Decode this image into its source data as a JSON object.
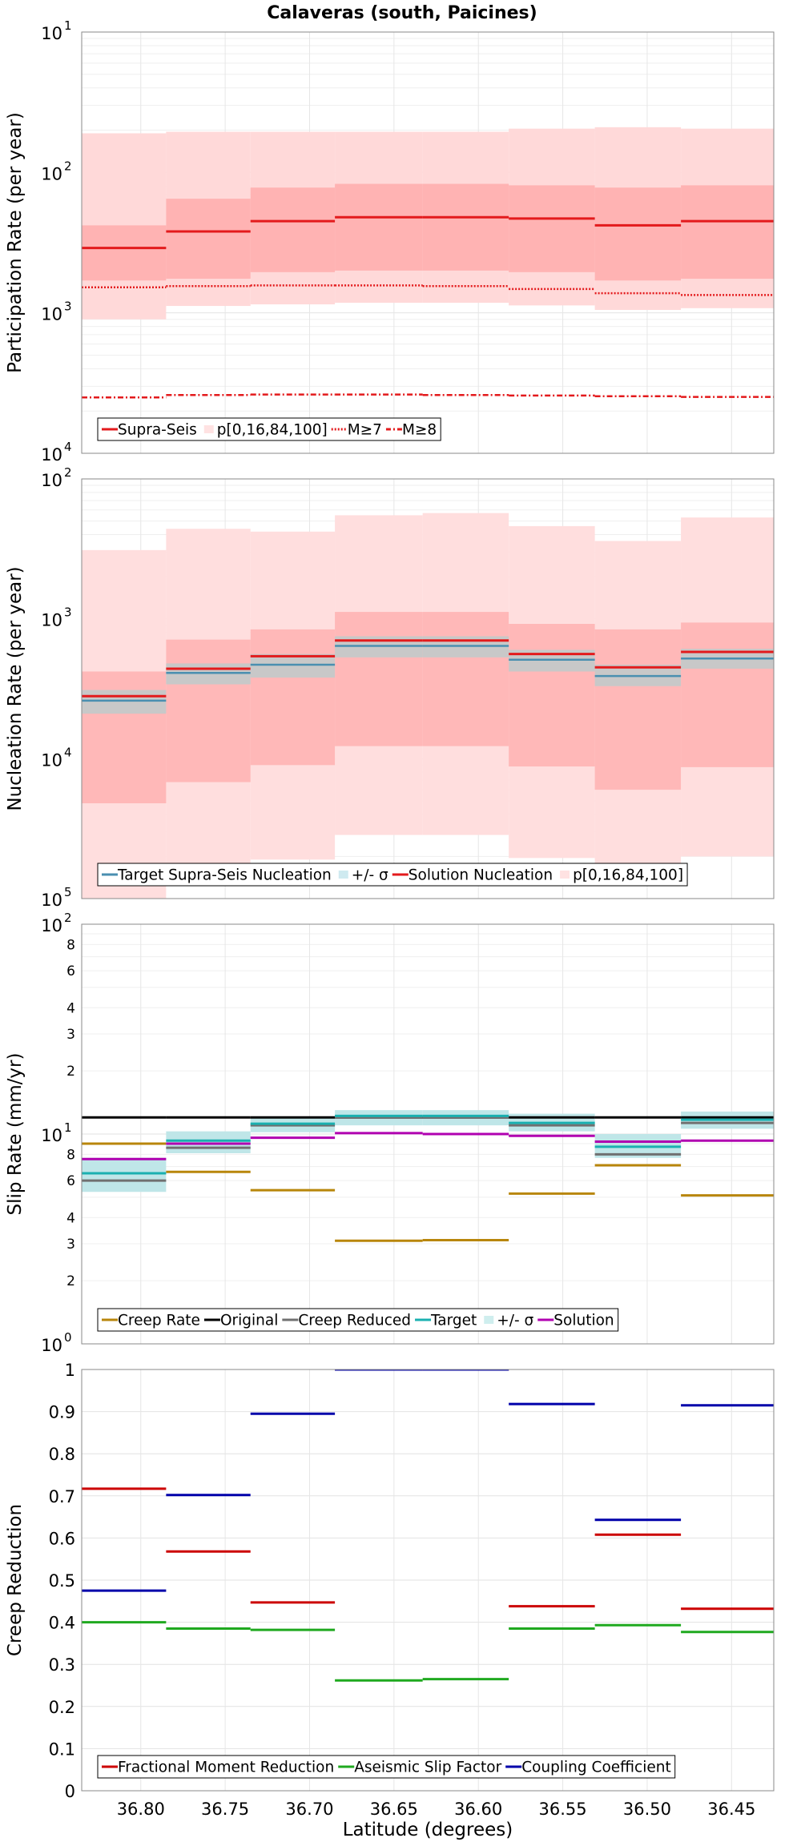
{
  "title": "Calaveras (south, Paicines)",
  "x_axis": {
    "label": "Latitude (degrees)",
    "range": [
      36.835,
      36.425
    ],
    "ticks": [
      36.8,
      36.75,
      36.7,
      36.65,
      36.6,
      36.55,
      36.5,
      36.45
    ],
    "tick_labels": [
      "36.80",
      "36.75",
      "36.70",
      "36.65",
      "36.60",
      "36.55",
      "36.50",
      "36.45"
    ]
  },
  "segments": [
    [
      36.835,
      36.785
    ],
    [
      36.785,
      36.735
    ],
    [
      36.735,
      36.685
    ],
    [
      36.685,
      36.633
    ],
    [
      36.633,
      36.582
    ],
    [
      36.582,
      36.531
    ],
    [
      36.531,
      36.48
    ],
    [
      36.48,
      36.425
    ]
  ],
  "colors": {
    "solution_red": "#e31a1c",
    "band_outer": "#ffd9d9",
    "band_inner": "#ffb3b3",
    "band_nuc_outer": "#ffdede",
    "band_nuc_inner": "#ffb8b8",
    "target_gray_band": "#c8c8c8",
    "target_blue": "#4a8fb0",
    "creep_rate": "#b8860b",
    "original": "#000000",
    "creep_reduced": "#707070",
    "target": "#1ab0b0",
    "sigma_band": "#bfe6e8",
    "solution": "#b000b0",
    "frac_moment": "#cc0000",
    "aseismic": "#1fa91f",
    "coupling": "#0000aa"
  },
  "chart_data": [
    {
      "type": "step",
      "yscale": "log",
      "ylabel": "Participation Rate (per year)",
      "ylim": [
        0.0001,
        0.1
      ],
      "yticks": [
        {
          "base": "10",
          "exp": "1"
        },
        {
          "base": "10",
          "exp": "2"
        },
        {
          "base": "10",
          "exp": "3"
        },
        {
          "base": "10",
          "exp": "4"
        }
      ],
      "series": [
        {
          "name": "Supra-Seis",
          "style": "solid",
          "values": [
            0.0029,
            0.0038,
            0.0045,
            0.0048,
            0.0048,
            0.0047,
            0.0042,
            0.0045
          ]
        },
        {
          "name": "M≥7",
          "style": "dotted",
          "values": [
            0.00152,
            0.00155,
            0.00157,
            0.00157,
            0.00155,
            0.00148,
            0.00138,
            0.00134
          ]
        },
        {
          "name": "M≥8",
          "style": "dashdot",
          "values": [
            0.00025,
            0.00026,
            0.000262,
            0.000262,
            0.00026,
            0.000258,
            0.000255,
            0.000252
          ]
        }
      ],
      "bands": {
        "name": "p[0,16,84,100]",
        "p0": [
          0.0009,
          0.00112,
          0.00115,
          0.00118,
          0.00118,
          0.00113,
          0.00105,
          0.00108
        ],
        "p16": [
          0.0017,
          0.00175,
          0.00195,
          0.002,
          0.002,
          0.00195,
          0.0017,
          0.00175
        ],
        "p84": [
          0.0042,
          0.0065,
          0.0078,
          0.0083,
          0.0083,
          0.0081,
          0.0078,
          0.0081
        ],
        "p100": [
          0.019,
          0.0195,
          0.0195,
          0.0195,
          0.0195,
          0.0205,
          0.021,
          0.0205
        ]
      },
      "legend": [
        "Supra-Seis",
        "p[0,16,84,100]",
        "M≥7",
        "M≥8"
      ]
    },
    {
      "type": "step",
      "yscale": "log",
      "ylabel": "Nucleation Rate (per year)",
      "ylim": [
        1e-05,
        0.01
      ],
      "yticks": [
        {
          "base": "10",
          "exp": "2"
        },
        {
          "base": "10",
          "exp": "3"
        },
        {
          "base": "10",
          "exp": "4"
        },
        {
          "base": "10",
          "exp": "5"
        }
      ],
      "series": [
        {
          "name": "Target Supra-Seis Nucleation",
          "values": [
            0.00026,
            0.00041,
            0.00047,
            0.00064,
            0.00064,
            0.00051,
            0.00039,
            0.00052
          ]
        },
        {
          "name": "Solution Nucleation",
          "values": [
            0.00028,
            0.00044,
            0.00054,
            0.0007,
            0.0007,
            0.00056,
            0.00045,
            0.00058
          ]
        }
      ],
      "target_sigma": {
        "lower": [
          0.00021,
          0.00034,
          0.00038,
          0.00053,
          0.00053,
          0.00042,
          0.00033,
          0.00044
        ],
        "upper": [
          0.00031,
          0.00048,
          0.00056,
          0.00075,
          0.00075,
          0.0006,
          0.00047,
          0.00061
        ]
      },
      "bands": {
        "name": "p[0,16,84,100]",
        "p0": [
          9.6e-06,
          1.65e-05,
          1.9e-05,
          2.85e-05,
          2.85e-05,
          1.95e-05,
          1.75e-05,
          2e-05
        ],
        "p16": [
          4.8e-05,
          6.8e-05,
          9e-05,
          0.000123,
          0.000123,
          8.8e-05,
          6e-05,
          8.7e-05
        ],
        "p84": [
          0.00042,
          0.00071,
          0.00084,
          0.00112,
          0.00112,
          0.00092,
          0.00084,
          0.00094
        ],
        "p100": [
          0.0031,
          0.0044,
          0.0042,
          0.0055,
          0.0057,
          0.0046,
          0.0036,
          0.0053
        ]
      },
      "legend": [
        "Target Supra-Seis Nucleation",
        "+/- σ",
        "Solution Nucleation",
        "p[0,16,84,100]"
      ]
    },
    {
      "type": "step",
      "yscale": "log",
      "ylabel": "Slip Rate (mm/yr)",
      "ylim": [
        1,
        100
      ],
      "yticks": [
        {
          "base": "10",
          "exp": "2"
        },
        {
          "base": "10",
          "exp": "1"
        },
        {
          "base": "10",
          "exp": "0"
        }
      ],
      "minor_ticks": [
        2,
        3,
        4,
        6,
        8,
        20,
        30,
        40,
        60,
        80
      ],
      "minor_tick_labels": [
        "2",
        "3",
        "4",
        "6",
        "8",
        "2",
        "3",
        "4",
        "6",
        "8"
      ],
      "series": [
        {
          "name": "Creep Rate",
          "values": [
            9.0,
            6.6,
            5.4,
            3.1,
            3.12,
            5.2,
            7.1,
            5.1
          ]
        },
        {
          "name": "Original",
          "values": [
            12.0,
            12.0,
            12.0,
            12.0,
            12.0,
            12.0,
            12.0,
            12.0
          ]
        },
        {
          "name": "Creep Reduced",
          "values": [
            6.0,
            8.6,
            11.0,
            12.0,
            12.0,
            11.0,
            8.0,
            11.3
          ]
        },
        {
          "name": "Target",
          "values": [
            6.5,
            9.3,
            11.2,
            12.2,
            12.2,
            11.3,
            8.7,
            11.7
          ]
        },
        {
          "name": "Solution",
          "values": [
            7.6,
            9.0,
            9.6,
            10.1,
            10.0,
            9.8,
            9.2,
            9.3
          ]
        }
      ],
      "sigma_band": {
        "name": "+/- σ",
        "lower": [
          5.3,
          8.1,
          10.2,
          11.0,
          11.0,
          10.3,
          7.7,
          10.6
        ],
        "upper": [
          7.7,
          10.3,
          12.0,
          13.0,
          13.0,
          12.5,
          10.0,
          12.8
        ]
      },
      "legend": [
        "Creep Rate",
        "Original",
        "Creep Reduced",
        "Target",
        "+/- σ",
        "Solution"
      ]
    },
    {
      "type": "step",
      "yscale": "linear",
      "ylabel": "Creep Reduction",
      "ylim": [
        0,
        1
      ],
      "yticks": [
        0,
        0.1,
        0.2,
        0.3,
        0.4,
        0.5,
        0.6,
        0.7,
        0.8,
        0.9,
        1
      ],
      "ytick_labels": [
        "0",
        "0.1",
        "0.2",
        "0.3",
        "0.4",
        "0.5",
        "0.6",
        "0.7",
        "0.8",
        "0.9",
        "1"
      ],
      "series": [
        {
          "name": "Fractional Moment Reduction",
          "values": [
            0.717,
            0.568,
            0.447,
            1.0,
            1.0,
            0.438,
            0.608,
            0.432
          ]
        },
        {
          "name": "Aseismic Slip Factor",
          "values": [
            0.4,
            0.385,
            0.382,
            0.262,
            0.265,
            0.385,
            0.393,
            0.377
          ]
        },
        {
          "name": "Coupling Coefficient",
          "values": [
            0.475,
            0.702,
            0.895,
            1.0,
            1.0,
            0.918,
            0.643,
            0.915
          ]
        }
      ],
      "legend": [
        "Fractional Moment Reduction",
        "Aseismic Slip Factor",
        "Coupling Coefficient"
      ]
    }
  ]
}
